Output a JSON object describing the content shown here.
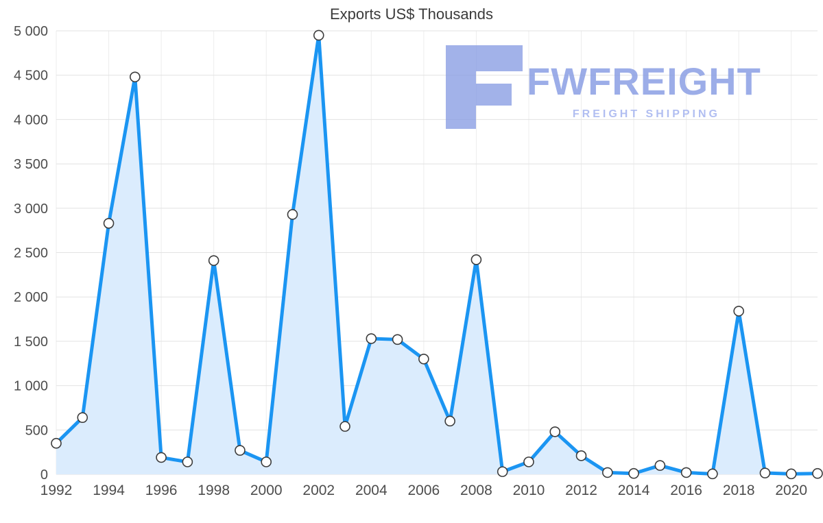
{
  "chart_data": {
    "type": "area",
    "title": "Exports US$ Thousands",
    "xlabel": "",
    "ylabel": "",
    "x": [
      1992,
      1993,
      1994,
      1995,
      1996,
      1997,
      1998,
      1999,
      2000,
      2001,
      2002,
      2003,
      2004,
      2005,
      2006,
      2007,
      2008,
      2009,
      2010,
      2011,
      2012,
      2013,
      2014,
      2015,
      2016,
      2017,
      2018,
      2019,
      2020,
      2021
    ],
    "values": [
      350,
      640,
      2830,
      4480,
      190,
      140,
      2410,
      270,
      140,
      2930,
      4950,
      540,
      1530,
      1520,
      1300,
      600,
      2420,
      30,
      140,
      480,
      210,
      20,
      10,
      100,
      20,
      5,
      1840,
      15,
      5,
      10
    ],
    "ylim": [
      0,
      5000
    ],
    "yticks": [
      {
        "value": 0,
        "label": "0"
      },
      {
        "value": 500,
        "label": "500"
      },
      {
        "value": 1000,
        "label": "1 000"
      },
      {
        "value": 1500,
        "label": "1 500"
      },
      {
        "value": 2000,
        "label": "2 000"
      },
      {
        "value": 2500,
        "label": "2 500"
      },
      {
        "value": 3000,
        "label": "3 000"
      },
      {
        "value": 3500,
        "label": "3 500"
      },
      {
        "value": 4000,
        "label": "4 000"
      },
      {
        "value": 4500,
        "label": "4 500"
      },
      {
        "value": 5000,
        "label": "5 000"
      }
    ],
    "xticks": [
      {
        "value": 1992,
        "label": "1992"
      },
      {
        "value": 1994,
        "label": "1994"
      },
      {
        "value": 1996,
        "label": "1996"
      },
      {
        "value": 1998,
        "label": "1998"
      },
      {
        "value": 2000,
        "label": "2000"
      },
      {
        "value": 2002,
        "label": "2002"
      },
      {
        "value": 2004,
        "label": "2004"
      },
      {
        "value": 2006,
        "label": "2006"
      },
      {
        "value": 2008,
        "label": "2008"
      },
      {
        "value": 2010,
        "label": "2010"
      },
      {
        "value": 2012,
        "label": "2012"
      },
      {
        "value": 2014,
        "label": "2014"
      },
      {
        "value": 2016,
        "label": "2016"
      },
      {
        "value": 2018,
        "label": "2018"
      },
      {
        "value": 2020,
        "label": "2020"
      }
    ],
    "grid": true,
    "legend": "none",
    "line_color": "#1b95f2",
    "fill_color": "#dbecfd",
    "marker_fill": "#ffffff",
    "marker_stroke": "#3c3c3c",
    "grid_color": "#e2e2e2",
    "vgrid_color": "#ededed",
    "axis_text_color": "#4d4d4d"
  },
  "watermark": {
    "brand": "FWFREIGHT",
    "tagline": "FREIGHT SHIPPING",
    "logo_color": "#8b9fe4"
  }
}
